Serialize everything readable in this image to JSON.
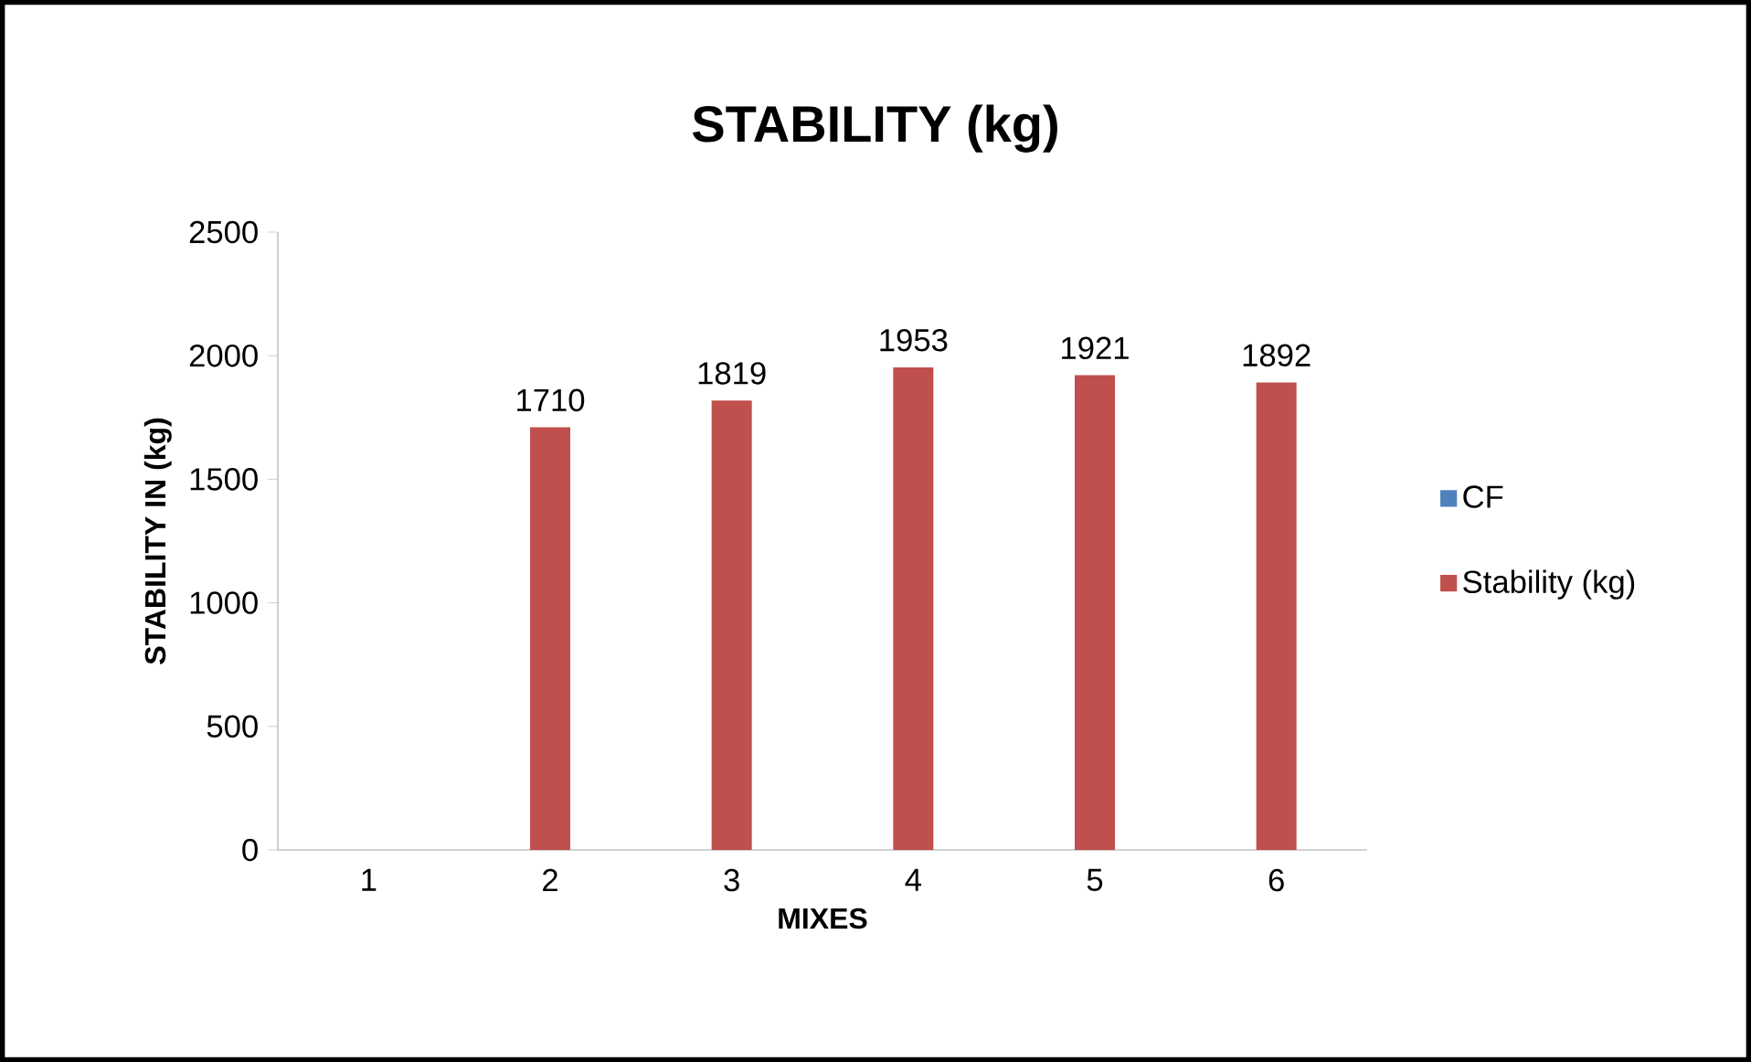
{
  "chart_data": {
    "type": "bar",
    "title": "STABILITY (kg)",
    "xlabel": "MIXES",
    "ylabel": "STABILITY IN (kg)",
    "categories": [
      "1",
      "2",
      "3",
      "4",
      "5",
      "6"
    ],
    "series": [
      {
        "name": "CF",
        "color": "#4f81bd",
        "values": [
          null,
          null,
          null,
          null,
          null,
          null
        ]
      },
      {
        "name": "Stability (kg)",
        "color": "#c0504d",
        "values": [
          null,
          1710,
          1819,
          1953,
          1921,
          1892
        ]
      }
    ],
    "ylim": [
      0,
      2500
    ],
    "yticks": [
      0,
      500,
      1000,
      1500,
      2000,
      2500
    ],
    "data_labels": true,
    "legend": "right",
    "grid": false
  }
}
